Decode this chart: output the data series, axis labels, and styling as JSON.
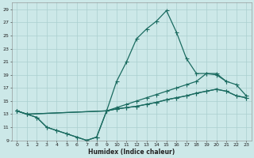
{
  "xlabel": "Humidex (Indice chaleur)",
  "bg_color": "#cce8e8",
  "line_color": "#1a6b60",
  "grid_color": "#aacfcf",
  "xlim": [
    -0.5,
    23.5
  ],
  "ylim": [
    9,
    30
  ],
  "xticks": [
    0,
    1,
    2,
    3,
    4,
    5,
    6,
    7,
    8,
    9,
    10,
    11,
    12,
    13,
    14,
    15,
    16,
    17,
    18,
    19,
    20,
    21,
    22,
    23
  ],
  "yticks": [
    9,
    11,
    13,
    15,
    17,
    19,
    21,
    23,
    25,
    27,
    29
  ],
  "curve1_x": [
    0,
    1,
    2,
    3,
    4,
    5,
    6,
    7,
    8,
    9,
    10,
    11,
    12,
    13,
    14,
    15,
    16,
    17,
    18,
    19,
    20,
    21
  ],
  "curve1_y": [
    13.5,
    13.0,
    12.5,
    11.0,
    10.5,
    10.0,
    9.5,
    9.0,
    9.5,
    13.5,
    18.0,
    21.0,
    24.5,
    26.0,
    27.2,
    28.8,
    25.5,
    21.5,
    19.2,
    19.2,
    19.0,
    18.0
  ],
  "curve2_x": [
    0,
    1,
    9,
    10,
    11,
    12,
    13,
    14,
    15,
    16,
    17,
    18,
    19,
    20,
    21,
    22,
    23
  ],
  "curve2_y": [
    13.5,
    13.0,
    13.5,
    14.0,
    14.5,
    15.0,
    15.5,
    16.0,
    16.5,
    17.0,
    17.5,
    18.0,
    19.2,
    19.2,
    18.0,
    17.5,
    15.8
  ],
  "curve3_x": [
    0,
    1,
    9,
    10,
    11,
    12,
    13,
    14,
    15,
    16,
    17,
    18,
    19,
    20,
    21,
    22,
    23
  ],
  "curve3_y": [
    13.5,
    13.0,
    13.5,
    13.8,
    14.0,
    14.2,
    14.5,
    14.8,
    15.2,
    15.5,
    15.8,
    16.2,
    16.5,
    16.8,
    16.5,
    15.8,
    15.5
  ],
  "curve4_x": [
    0,
    2,
    3,
    4,
    5,
    6,
    7,
    8,
    9,
    10,
    11,
    12,
    13,
    14,
    15,
    16,
    17,
    18,
    19,
    20,
    21,
    22,
    23
  ],
  "curve4_y": [
    13.5,
    12.5,
    11.0,
    10.5,
    10.0,
    9.5,
    9.0,
    9.5,
    13.5,
    13.8,
    14.0,
    14.2,
    14.5,
    14.8,
    15.2,
    15.5,
    15.8,
    16.2,
    16.5,
    16.8,
    16.5,
    15.8,
    15.5
  ]
}
